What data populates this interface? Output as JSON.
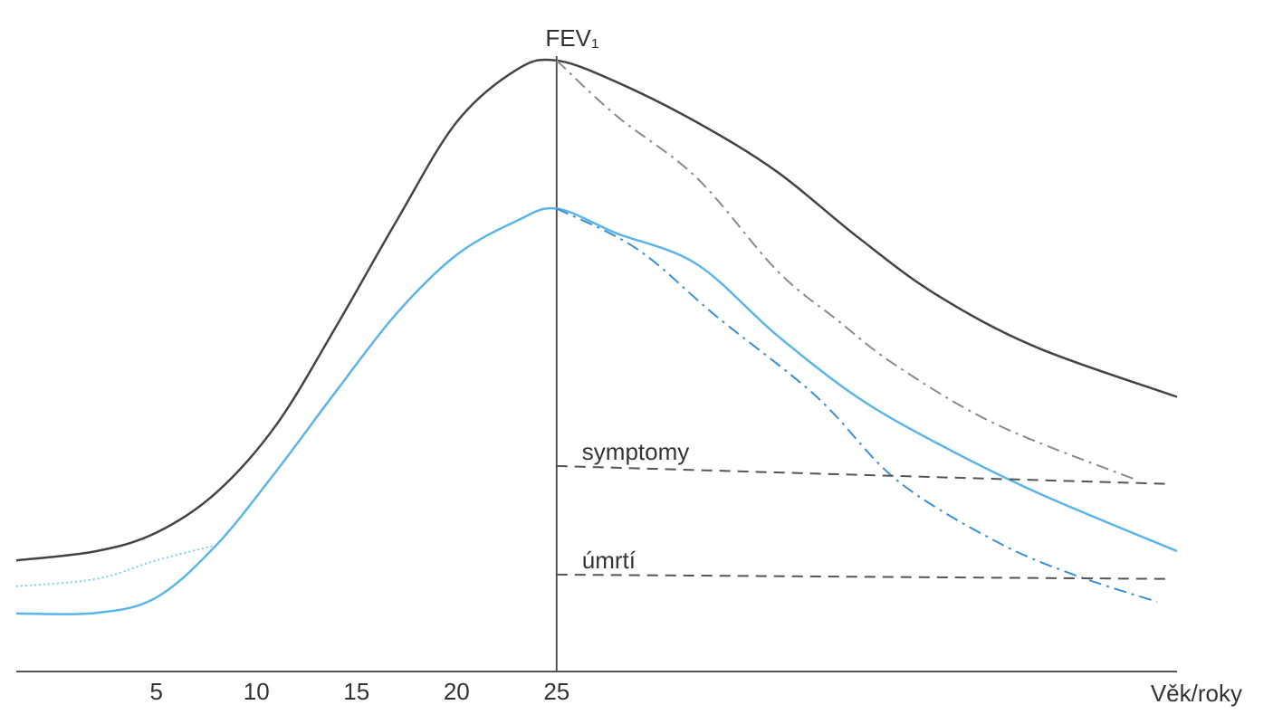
{
  "chart_data": {
    "type": "line",
    "y_label": "FEV₁",
    "x_label": "Věk/roky",
    "xlim": [
      -2,
      56
    ],
    "ylim": [
      0,
      100
    ],
    "xticks": [
      5,
      10,
      15,
      20,
      25
    ],
    "y_axis_at": 25,
    "series": [
      {
        "color": "#444444",
        "style": "solid",
        "x": [
          -2,
          2,
          5,
          8,
          11,
          14,
          17,
          20,
          23,
          25,
          28,
          32,
          36,
          40,
          44,
          49,
          56
        ],
        "values": [
          18,
          19.5,
          22.5,
          29,
          40,
          56,
          73,
          89,
          97.5,
          99,
          95.5,
          89,
          81,
          70.5,
          61,
          52.5,
          44.5
        ]
      },
      {
        "color": "#8a8a8a",
        "style": "dash-dot",
        "x": [
          25,
          28,
          32,
          36,
          39,
          42,
          47,
          54
        ],
        "values": [
          99,
          90,
          80,
          65,
          57,
          49.5,
          40,
          31
        ]
      },
      {
        "color": "#7fd0e0",
        "style": "dotted",
        "x": [
          -2,
          2,
          5,
          8
        ],
        "values": [
          13.8,
          15,
          18,
          20.5
        ]
      },
      {
        "color": "#5bb5e8",
        "style": "solid",
        "x": [
          -2,
          2,
          5,
          8,
          11,
          14,
          17,
          20,
          23,
          25,
          28,
          32,
          36,
          40,
          44,
          49,
          56
        ],
        "values": [
          9.4,
          9.5,
          12,
          20.5,
          32.5,
          45.5,
          58,
          67.5,
          73,
          75,
          71,
          66,
          54.5,
          44.5,
          37,
          29,
          19.5
        ]
      },
      {
        "color": "#3a8fd6",
        "style": "dash-dot",
        "x": [
          25,
          29,
          33,
          38,
          42,
          47,
          51,
          55
        ],
        "values": [
          75,
          68.5,
          57.5,
          44.5,
          31,
          21,
          15.5,
          11.3
        ]
      },
      {
        "name": "symptomy",
        "color": "#555555",
        "style": "dashed",
        "x": [
          25,
          55.5
        ],
        "values": [
          33.3,
          30.4
        ]
      },
      {
        "name": "úmrtí",
        "color": "#555555",
        "style": "dashed",
        "x": [
          25,
          55.5
        ],
        "values": [
          15.7,
          15
        ]
      }
    ]
  }
}
